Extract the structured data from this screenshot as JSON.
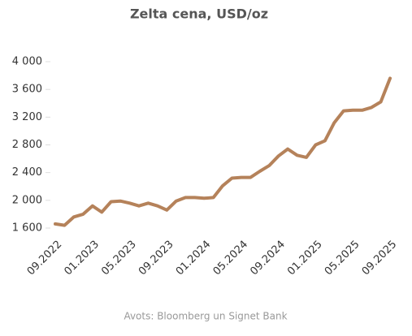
{
  "chart_data": {
    "type": "line",
    "title": "Zelta cena, USD/oz",
    "categories": [
      "09.2022",
      null,
      null,
      null,
      "01.2023",
      null,
      null,
      null,
      "05.2023",
      null,
      null,
      null,
      "09.2023",
      null,
      null,
      null,
      "01.2024",
      null,
      null,
      null,
      "05.2024",
      null,
      null,
      null,
      "09.2024",
      null,
      null,
      null,
      "01.2025",
      null,
      null,
      null,
      "05.2025",
      null,
      null,
      null,
      "09.2025"
    ],
    "series": [
      {
        "name": "Zelta cena",
        "color": "#b5825a",
        "values": [
          1660,
          1640,
          1760,
          1800,
          1920,
          1830,
          1980,
          1990,
          1960,
          1920,
          1960,
          1920,
          1860,
          1990,
          2040,
          2040,
          2030,
          2040,
          2210,
          2320,
          2330,
          2330,
          2420,
          2500,
          2640,
          2740,
          2650,
          2620,
          2800,
          2860,
          3120,
          3290,
          3300,
          3300,
          3340,
          3420,
          3760
        ]
      }
    ],
    "ylim": [
      1600,
      4000
    ],
    "yticks": [
      {
        "value": 1600,
        "label": "1 600"
      },
      {
        "value": 2000,
        "label": "2 000"
      },
      {
        "value": 2400,
        "label": "2 400"
      },
      {
        "value": 2800,
        "label": "2 800"
      },
      {
        "value": 3200,
        "label": "3 200"
      },
      {
        "value": 3600,
        "label": "3 600"
      },
      {
        "value": 4000,
        "label": "4 000"
      }
    ],
    "grid": false,
    "source": "Avots: Bloomberg un Signet Bank"
  }
}
